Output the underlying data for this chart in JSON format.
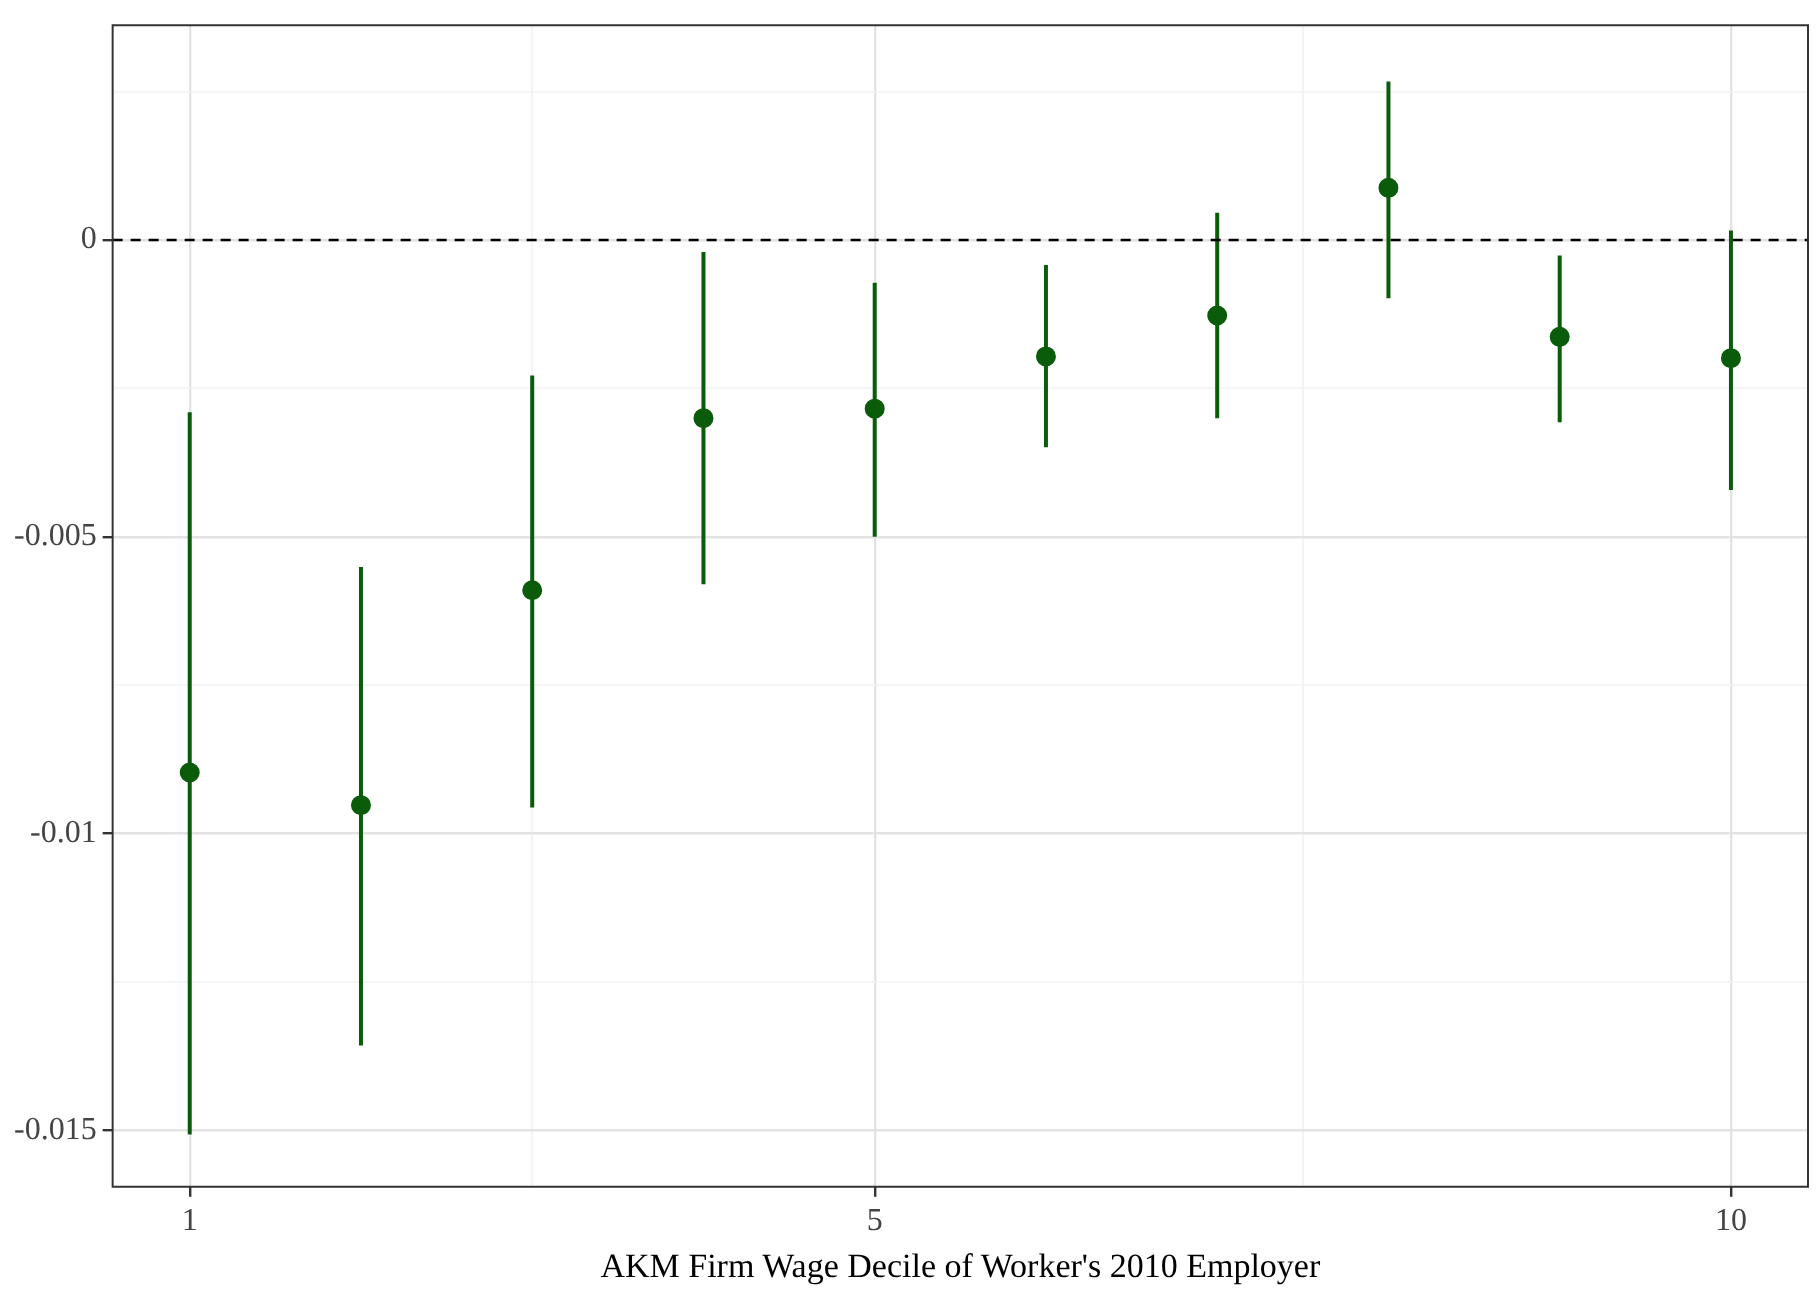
{
  "chart_data": {
    "type": "scatter",
    "xlabel": "AKM Firm Wage Decile of Worker's 2010 Employer",
    "x": [
      1,
      2,
      3,
      4,
      5,
      6,
      7,
      8,
      9,
      10
    ],
    "series": [
      {
        "color": "#0a5c0a",
        "values": [
          -0.00897,
          -0.00952,
          -0.0059,
          -0.003,
          -0.00284,
          -0.00196,
          -0.00127,
          0.00088,
          -0.00163,
          -0.00199
        ],
        "errors": [
          [
            -0.01507,
            -0.0029
          ],
          [
            -0.01357,
            -0.00551
          ],
          [
            -0.00956,
            -0.00228
          ],
          [
            -0.0058,
            -0.0002
          ],
          [
            -0.005,
            -0.00072
          ],
          [
            -0.00349,
            -0.00042
          ],
          [
            -0.003,
            0.00046
          ],
          [
            -0.00098,
            0.00267
          ],
          [
            -0.00307,
            -0.00026
          ],
          [
            -0.00421,
            0.00016
          ]
        ]
      }
    ],
    "xlim": [
      0.55,
      10.45
    ],
    "xticks": [
      1,
      {
        "value": 3,
        "label": null
      },
      5,
      {
        "value": 7.5,
        "label": null
      },
      10
    ],
    "ylim": [
      -0.01595,
      0.00362
    ],
    "yticks": [
      {
        "value": -0.015,
        "label": "-0.015"
      },
      {
        "value": -0.0125,
        "label": null
      },
      {
        "value": -0.01,
        "label": "-0.01"
      },
      {
        "value": -0.0075,
        "label": null
      },
      {
        "value": -0.005,
        "label": "-0.005"
      },
      {
        "value": -0.0025,
        "label": null
      },
      0,
      {
        "value": 0.0025,
        "label": null
      }
    ],
    "ref_lines": [
      {
        "axis": "y",
        "value": 0,
        "color": "#000000",
        "line_style": "dashed"
      }
    ],
    "grid": true,
    "legend": false,
    "marker": "circle"
  }
}
